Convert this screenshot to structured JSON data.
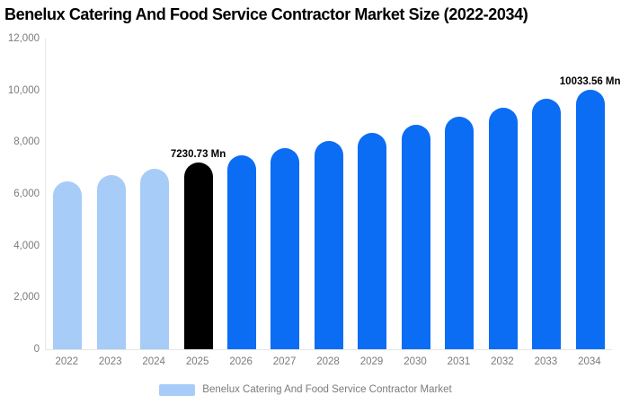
{
  "chart_data": {
    "type": "bar",
    "title": "Benelux Catering And Food Service Contractor Market Size (2022-2034)",
    "unit": "Mn",
    "categories": [
      "2022",
      "2023",
      "2024",
      "2025",
      "2026",
      "2027",
      "2028",
      "2029",
      "2030",
      "2031",
      "2032",
      "2033",
      "2034"
    ],
    "values": [
      6483,
      6723,
      6972,
      7230.73,
      7499,
      7777,
      8065,
      8364,
      8674,
      8996,
      9330,
      9676,
      10033.56
    ],
    "point_colors": [
      "#A7CCF8",
      "#A7CCF8",
      "#A7CCF8",
      "#000000",
      "#0B6CF4",
      "#0B6CF4",
      "#0B6CF4",
      "#0B6CF4",
      "#0B6CF4",
      "#0B6CF4",
      "#0B6CF4",
      "#0B6CF4",
      "#0B6CF4"
    ],
    "annotations": [
      {
        "index": 3,
        "text": "7230.73 Mn"
      },
      {
        "index": 12,
        "text": "10033.56 Mn"
      }
    ],
    "ylim": [
      0,
      12000
    ],
    "y_ticks": [
      "12,000",
      "10,000",
      "8,000",
      "6,000",
      "4,000",
      "2,000",
      "0"
    ],
    "grid": false,
    "legend_position": "bottom",
    "legend": [
      {
        "label": "Benelux Catering And Food Service Contractor Market",
        "color": "#A7CCF8"
      }
    ],
    "colors": {
      "historical": "#A7CCF8",
      "base_year": "#000000",
      "forecast": "#0B6CF4",
      "axis_text": "#7b7b7b",
      "axis_line": "#e6e6e6"
    }
  }
}
